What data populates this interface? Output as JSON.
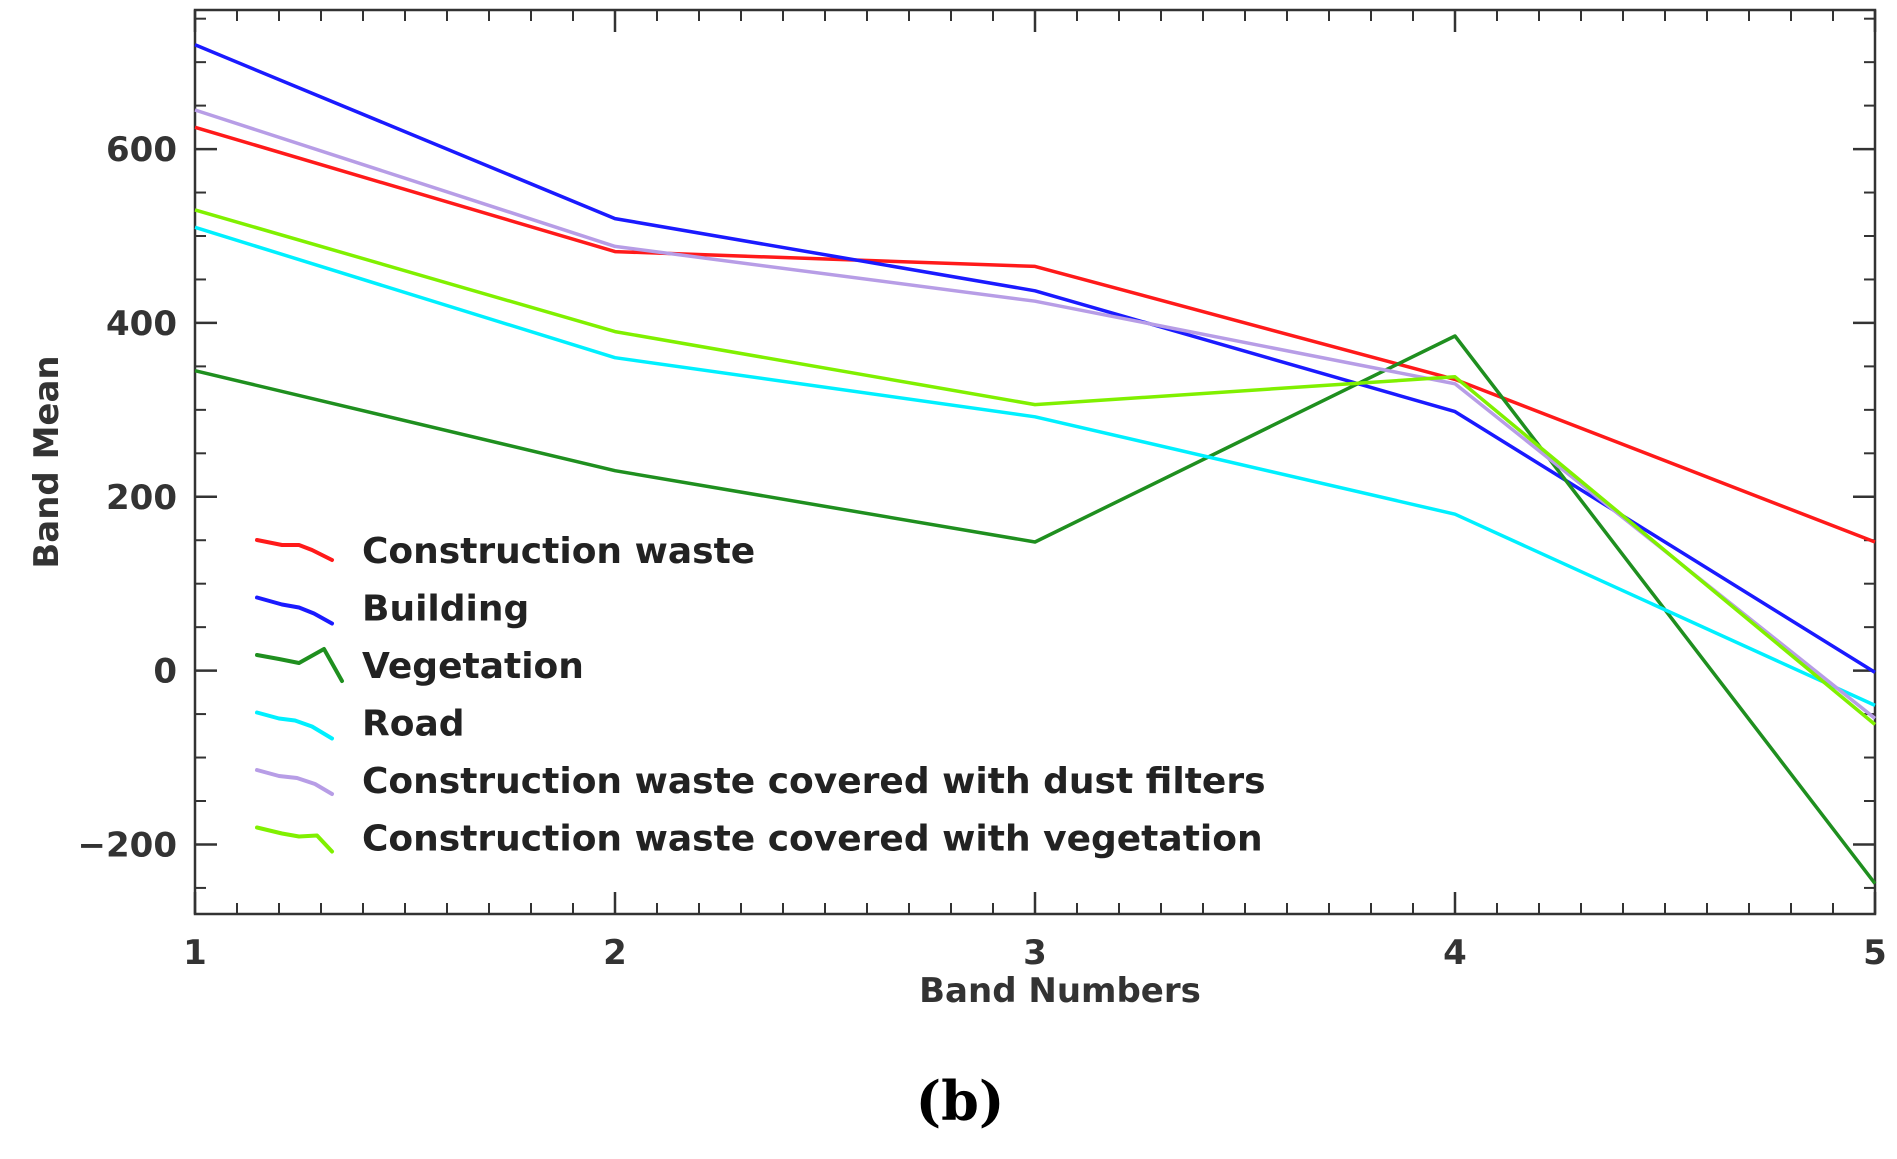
{
  "chart_data": {
    "type": "line",
    "title": "",
    "xlabel": "Band Numbers",
    "ylabel": "Band Mean",
    "x": [
      1,
      2,
      3,
      4,
      5
    ],
    "xlim": [
      1,
      5
    ],
    "ylim": [
      -280,
      760
    ],
    "xticks": [
      1,
      2,
      3,
      4,
      5
    ],
    "yticks": [
      -200,
      0,
      200,
      400,
      600
    ],
    "ytick_labels": [
      "−200",
      "0",
      "200",
      "400",
      "600"
    ],
    "grid": false,
    "legend_position": "lower-left",
    "series": [
      {
        "name": "Construction waste",
        "color": "#ff1a1a",
        "values": [
          625,
          482,
          465,
          335,
          148
        ]
      },
      {
        "name": "Building",
        "color": "#1a1aff",
        "values": [
          720,
          520,
          437,
          298,
          -2
        ]
      },
      {
        "name": "Vegetation",
        "color": "#1f8f1f",
        "values": [
          345,
          230,
          148,
          385,
          -245
        ]
      },
      {
        "name": "Road",
        "color": "#00f0ff",
        "values": [
          510,
          360,
          292,
          180,
          -40
        ]
      },
      {
        "name": "Construction waste covered with dust filters",
        "color": "#b79de6",
        "values": [
          645,
          488,
          425,
          330,
          -55
        ]
      },
      {
        "name": "Construction waste covered with vegetation",
        "color": "#80f000",
        "values": [
          530,
          390,
          306,
          338,
          -62
        ]
      }
    ]
  },
  "caption": "(b)"
}
